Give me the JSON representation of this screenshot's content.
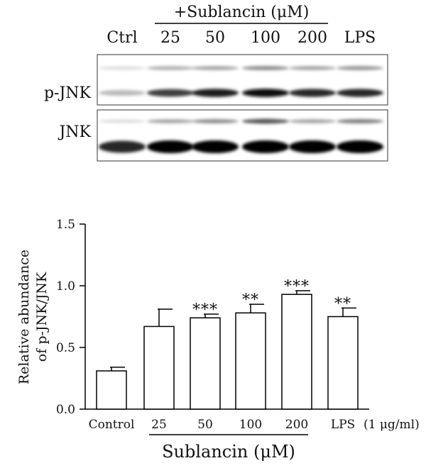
{
  "blot": {
    "header": "+Sublancin (μM)",
    "lanes": [
      "Ctrl",
      "25",
      "50",
      "100",
      "200",
      "LPS"
    ],
    "rows": [
      "p-JNK",
      "JNK"
    ],
    "pjnk_upper_band": [
      0.05,
      0.25,
      0.3,
      0.4,
      0.3,
      0.35
    ],
    "pjnk_lower_band": [
      0.2,
      0.75,
      0.9,
      0.95,
      0.85,
      0.85
    ],
    "jnk_upper_band": [
      0.05,
      0.3,
      0.4,
      0.65,
      0.3,
      0.45
    ],
    "jnk_lower_band": [
      0.85,
      1.0,
      1.0,
      1.0,
      1.0,
      1.0
    ]
  },
  "chart_data": {
    "type": "bar",
    "categories": [
      "Control",
      "25",
      "50",
      "100",
      "200",
      "LPS"
    ],
    "values": [
      0.31,
      0.67,
      0.74,
      0.78,
      0.93,
      0.75
    ],
    "errors": [
      0.03,
      0.14,
      0.03,
      0.07,
      0.03,
      0.07
    ],
    "significance": [
      "",
      "",
      "***",
      "**",
      "***",
      "**"
    ],
    "ylabel": "Relative abundance of p-JNK/JNK",
    "ylabel_lines": [
      "Relative abundance",
      "of p-JNK/JNK"
    ],
    "ylim": [
      0,
      1.5
    ],
    "yticks": [
      "0.0",
      "0.5",
      "1.0",
      "1.5"
    ],
    "lps_unit": "(1 μg/ml)",
    "group_label": "Sublancin (μM)",
    "grid": false,
    "bar_color": "#ffffff",
    "stroke_color": "#000000"
  }
}
